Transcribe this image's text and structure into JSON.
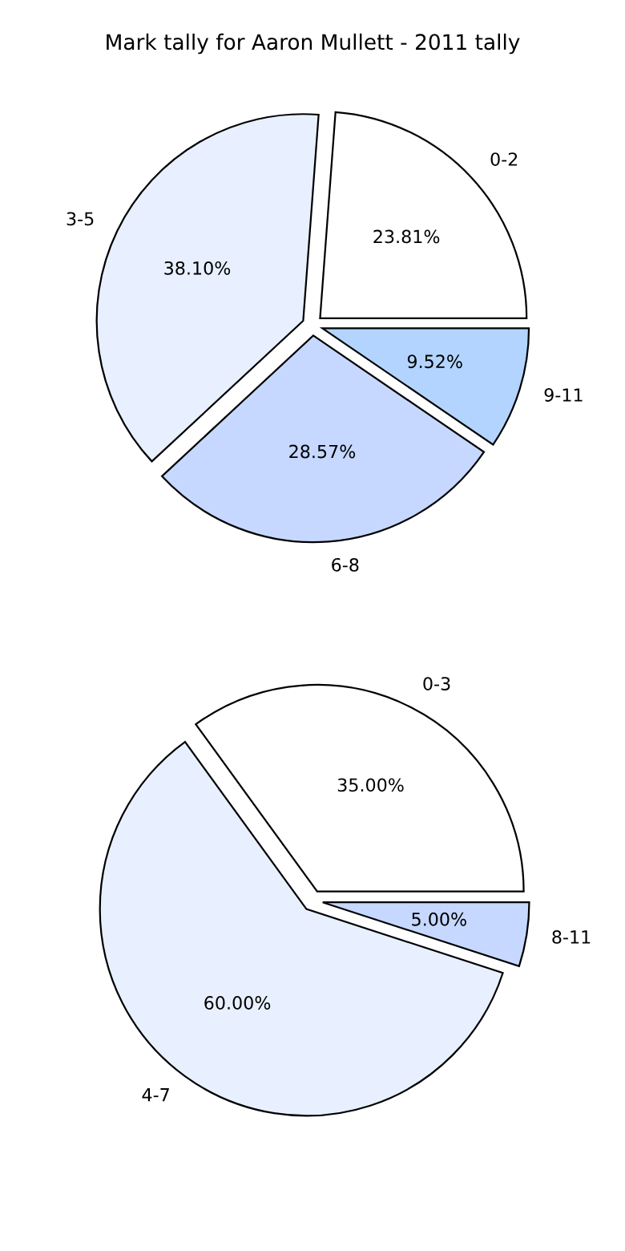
{
  "chart_data": [
    {
      "type": "pie",
      "title": "Mark tally for Aaron Mullett - 2011 tally",
      "categories": [
        "0-2",
        "3-5",
        "6-8",
        "9-11"
      ],
      "values": [
        23.81,
        38.1,
        28.57,
        9.52
      ],
      "colors": [
        "#ffffff",
        "#e8f0ff",
        "#c6d8ff",
        "#b3d4ff"
      ],
      "value_labels": [
        "23.81%",
        "38.10%",
        "28.57%",
        "9.52%"
      ]
    },
    {
      "type": "pie",
      "categories": [
        "0-3",
        "4-7",
        "8-11"
      ],
      "values": [
        35.0,
        60.0,
        5.0
      ],
      "colors": [
        "#ffffff",
        "#e8f0ff",
        "#c6d8ff"
      ],
      "value_labels": [
        "35.00%",
        "60.00%",
        "5.00%"
      ]
    }
  ]
}
